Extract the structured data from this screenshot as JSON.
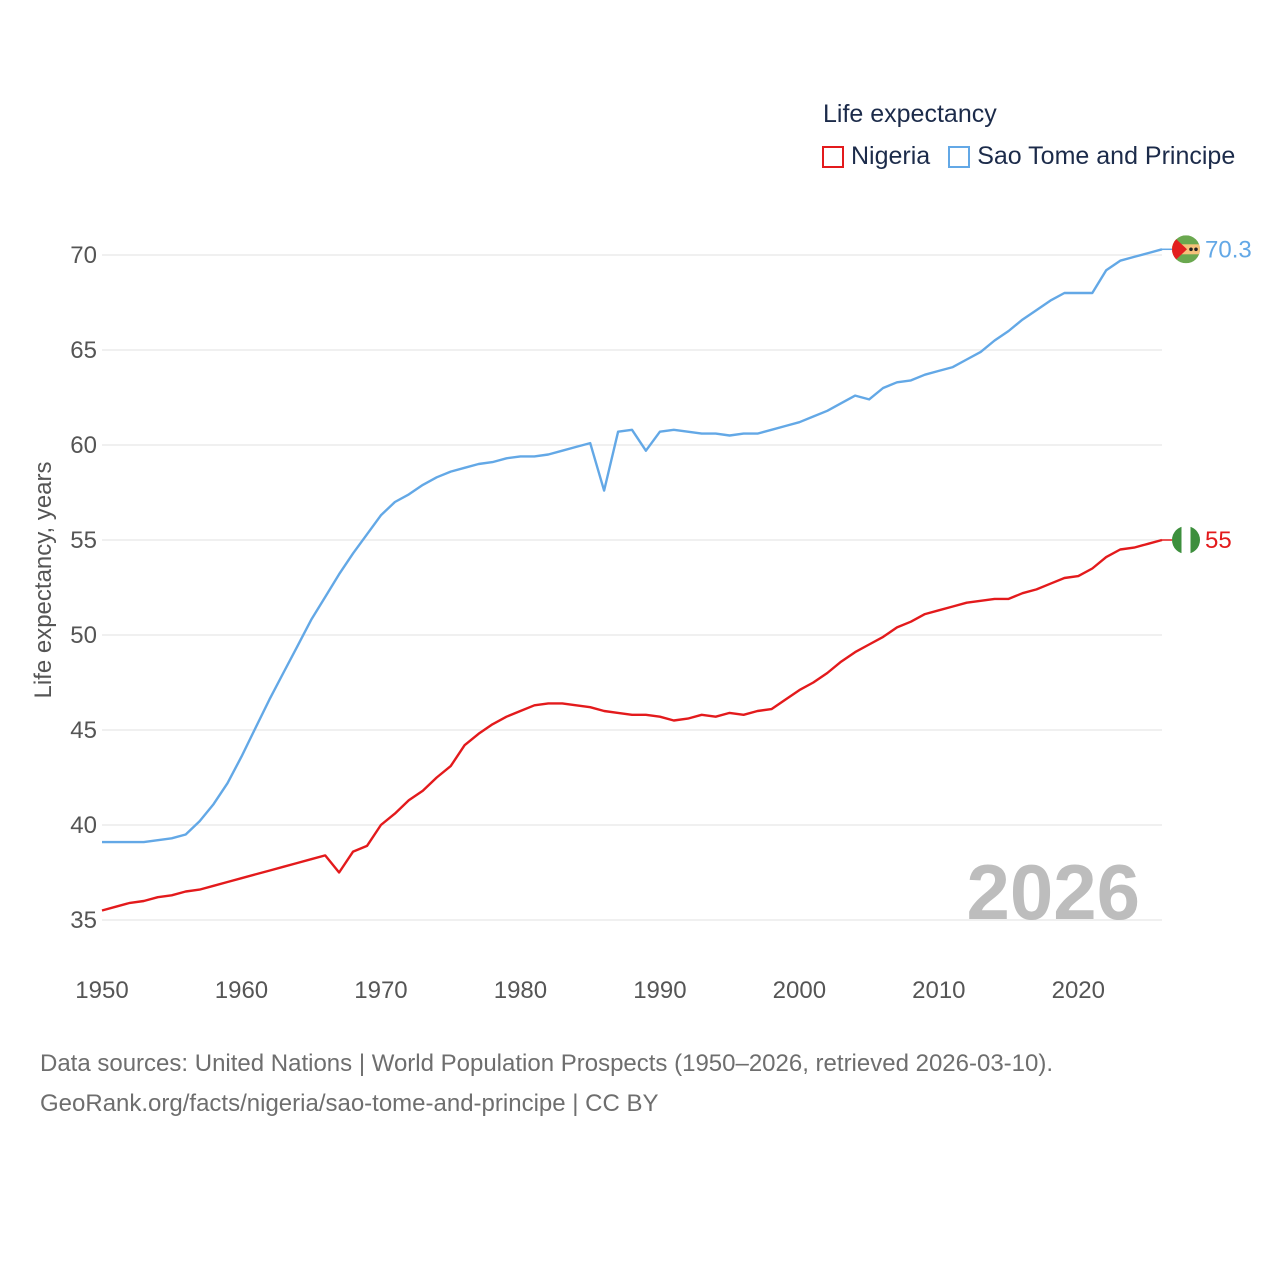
{
  "legend": {
    "title": "Life expectancy",
    "items": [
      {
        "name": "Nigeria",
        "color": "#e31a1c"
      },
      {
        "name": "Sao Tome and Principe",
        "color": "#63a8e6"
      }
    ]
  },
  "current_year": "2026",
  "footer": {
    "line1": "Data sources: United Nations | World Population Prospects (1950–2026, retrieved 2026-03-10).",
    "line2": "GeoRank.org/facts/nigeria/sao-tome-and-principe | CC BY"
  },
  "chart_data": {
    "type": "line",
    "title": "Life expectancy",
    "xlabel": "",
    "ylabel": "Life expectancy, years",
    "xlim": [
      1950,
      2026
    ],
    "ylim": [
      33,
      72
    ],
    "x_ticks": [
      1950,
      1960,
      1970,
      1980,
      1990,
      2000,
      2010,
      2020
    ],
    "y_ticks": [
      35,
      40,
      45,
      50,
      55,
      60,
      65,
      70
    ],
    "grid": true,
    "legend_position": "top-right",
    "x": [
      1950,
      1951,
      1952,
      1953,
      1954,
      1955,
      1956,
      1957,
      1958,
      1959,
      1960,
      1961,
      1962,
      1963,
      1964,
      1965,
      1966,
      1967,
      1968,
      1969,
      1970,
      1971,
      1972,
      1973,
      1974,
      1975,
      1976,
      1977,
      1978,
      1979,
      1980,
      1981,
      1982,
      1983,
      1984,
      1985,
      1986,
      1987,
      1988,
      1989,
      1990,
      1991,
      1992,
      1993,
      1994,
      1995,
      1996,
      1997,
      1998,
      1999,
      2000,
      2001,
      2002,
      2003,
      2004,
      2005,
      2006,
      2007,
      2008,
      2009,
      2010,
      2011,
      2012,
      2013,
      2014,
      2015,
      2016,
      2017,
      2018,
      2019,
      2020,
      2021,
      2022,
      2023,
      2024,
      2025,
      2026
    ],
    "series": [
      {
        "name": "Nigeria",
        "color": "#e31a1c",
        "end_label": "55",
        "values": [
          35.5,
          35.7,
          35.9,
          36.0,
          36.2,
          36.3,
          36.5,
          36.6,
          36.8,
          37.0,
          37.2,
          37.4,
          37.6,
          37.8,
          38.0,
          38.2,
          38.4,
          37.5,
          38.6,
          38.9,
          40.0,
          40.6,
          41.3,
          41.8,
          42.5,
          43.1,
          44.2,
          44.8,
          45.3,
          45.7,
          46.0,
          46.3,
          46.4,
          46.4,
          46.3,
          46.2,
          46.0,
          45.9,
          45.8,
          45.8,
          45.7,
          45.5,
          45.6,
          45.8,
          45.7,
          45.9,
          45.8,
          46.0,
          46.1,
          46.6,
          47.1,
          47.5,
          48.0,
          48.6,
          49.1,
          49.5,
          49.9,
          50.4,
          50.7,
          51.1,
          51.3,
          51.5,
          51.7,
          51.8,
          51.9,
          51.9,
          52.2,
          52.4,
          52.7,
          53.0,
          53.1,
          53.5,
          54.1,
          54.5,
          54.6,
          54.8,
          55.0
        ]
      },
      {
        "name": "Sao Tome and Principe",
        "color": "#63a8e6",
        "end_label": "70.3",
        "values": [
          39.1,
          39.1,
          39.1,
          39.1,
          39.2,
          39.3,
          39.5,
          40.2,
          41.1,
          42.2,
          43.6,
          45.1,
          46.6,
          48.0,
          49.4,
          50.8,
          52.0,
          53.2,
          54.3,
          55.3,
          56.3,
          57.0,
          57.4,
          57.9,
          58.3,
          58.6,
          58.8,
          59.0,
          59.1,
          59.3,
          59.4,
          59.4,
          59.5,
          59.7,
          59.9,
          60.1,
          57.6,
          60.7,
          60.8,
          59.7,
          60.7,
          60.8,
          60.7,
          60.6,
          60.6,
          60.5,
          60.6,
          60.6,
          60.8,
          61.0,
          61.2,
          61.5,
          61.8,
          62.2,
          62.6,
          62.4,
          63.0,
          63.3,
          63.4,
          63.7,
          63.9,
          64.1,
          64.5,
          64.9,
          65.5,
          66.0,
          66.6,
          67.1,
          67.6,
          68.0,
          68.0,
          68.0,
          69.2,
          69.7,
          69.9,
          70.1,
          70.3
        ]
      }
    ]
  }
}
